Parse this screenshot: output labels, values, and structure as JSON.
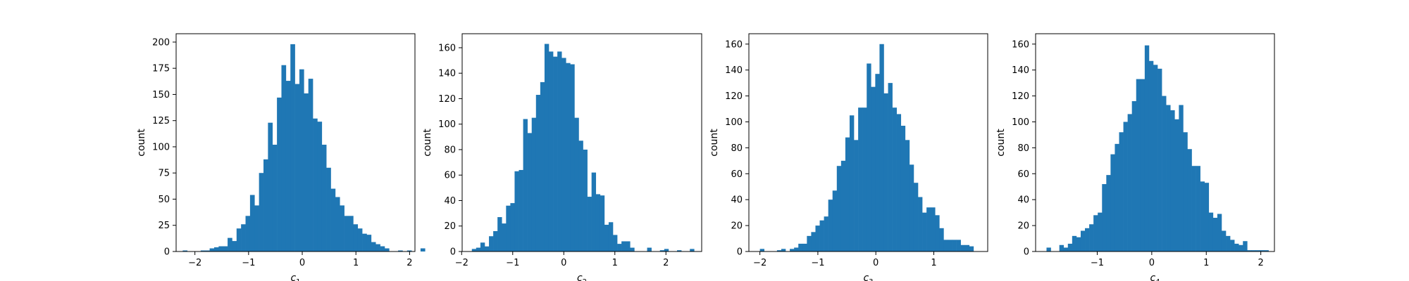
{
  "chart_data": [
    {
      "type": "bar",
      "xlabel_base": "c",
      "xlabel_sub": "1",
      "ylabel": "count",
      "xlim": [
        -2.35,
        2.1
      ],
      "ylim": [
        0,
        208
      ],
      "xticks": [
        -2,
        -1,
        0,
        1,
        2
      ],
      "yticks": [
        0,
        25,
        50,
        75,
        100,
        125,
        150,
        175,
        200
      ],
      "bin_start": -2.227,
      "bin_width": 0.0836,
      "values": [
        1,
        0,
        0,
        0,
        1,
        1,
        3,
        4,
        5,
        5,
        13,
        10,
        22,
        26,
        34,
        54,
        44,
        75,
        88,
        123,
        102,
        147,
        178,
        163,
        198,
        160,
        174,
        151,
        165,
        127,
        124,
        102,
        80,
        60,
        52,
        44,
        34,
        34,
        26,
        22,
        17,
        16,
        9,
        7,
        5,
        3,
        0,
        0,
        1,
        0,
        1,
        0,
        0,
        3
      ]
    },
    {
      "type": "bar",
      "xlabel_base": "c",
      "xlabel_sub": "2",
      "ylabel": "count",
      "xlim": [
        -1.99,
        2.7
      ],
      "ylim": [
        0,
        171
      ],
      "xticks": [
        -2,
        -1,
        0,
        1,
        2
      ],
      "yticks": [
        0,
        20,
        40,
        60,
        80,
        100,
        120,
        140,
        160
      ],
      "bin_start": -1.8,
      "bin_width": 0.0837,
      "values": [
        2,
        3,
        7,
        4,
        12,
        16,
        27,
        22,
        36,
        38,
        63,
        64,
        104,
        93,
        105,
        123,
        133,
        163,
        157,
        153,
        157,
        152,
        148,
        147,
        105,
        87,
        80,
        43,
        62,
        45,
        44,
        21,
        23,
        13,
        6,
        8,
        8,
        3,
        0,
        0,
        0,
        3,
        0,
        0,
        1,
        2,
        0,
        0,
        1,
        0,
        0,
        2
      ]
    },
    {
      "type": "bar",
      "xlabel_base": "c",
      "xlabel_sub": "3",
      "ylabel": "count",
      "xlim": [
        -2.19,
        1.93
      ],
      "ylim": [
        0,
        168
      ],
      "xticks": [
        -2,
        -1,
        0,
        1
      ],
      "yticks": [
        0,
        20,
        40,
        60,
        80,
        100,
        120,
        140,
        160
      ],
      "bin_start": -2.0,
      "bin_width": 0.0737,
      "values": [
        2,
        0,
        0,
        0,
        1,
        2,
        0,
        2,
        3,
        6,
        6,
        12,
        15,
        20,
        24,
        27,
        40,
        47,
        66,
        70,
        88,
        105,
        86,
        111,
        111,
        145,
        127,
        137,
        160,
        122,
        130,
        111,
        106,
        97,
        86,
        67,
        53,
        42,
        30,
        34,
        34,
        28,
        18,
        9,
        9,
        9,
        9,
        5,
        5,
        4
      ]
    },
    {
      "type": "bar",
      "xlabel_base": "c",
      "xlabel_sub": "4",
      "ylabel": "count",
      "xlim": [
        -2.13,
        2.25
      ],
      "ylim": [
        0,
        168
      ],
      "xticks": [
        -1,
        0,
        1,
        2
      ],
      "yticks": [
        0,
        20,
        40,
        60,
        80,
        100,
        120,
        140,
        160
      ],
      "bin_start": -1.93,
      "bin_width": 0.0783,
      "values": [
        3,
        0,
        0,
        5,
        3,
        6,
        12,
        11,
        16,
        18,
        21,
        28,
        30,
        52,
        59,
        75,
        83,
        92,
        100,
        106,
        116,
        133,
        133,
        159,
        147,
        144,
        141,
        120,
        113,
        109,
        102,
        113,
        92,
        79,
        66,
        66,
        54,
        53,
        30,
        26,
        29,
        16,
        12,
        9,
        6,
        5,
        8,
        1,
        1,
        1,
        1,
        1
      ]
    }
  ]
}
